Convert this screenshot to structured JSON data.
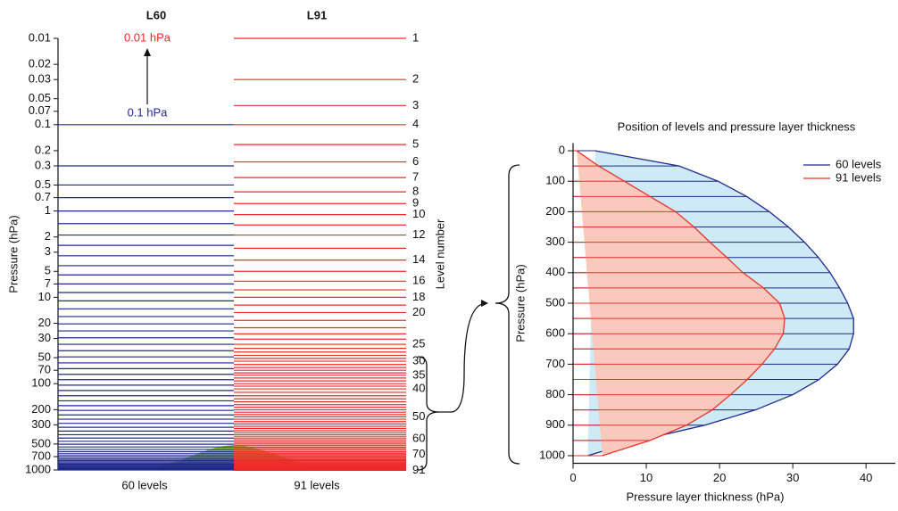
{
  "chart_data": [
    {
      "type": "levels",
      "ylabel": "Pressure (hPa)",
      "y2label": "Level number",
      "log_y": true,
      "ylim": [
        0.01,
        1000
      ],
      "yticks": [
        0.01,
        0.02,
        0.03,
        0.05,
        0.07,
        0.1,
        0.2,
        0.3,
        0.5,
        0.7,
        1,
        2,
        3,
        5,
        7,
        10,
        20,
        30,
        50,
        70,
        100,
        200,
        300,
        500,
        700,
        1000
      ],
      "columns": [
        {
          "name": "L60",
          "caption": "60 levels",
          "color": "#1f2a8a",
          "levels": [
            0.1,
            0.3,
            0.5,
            0.7,
            1.0,
            1.4,
            1.9,
            2.5,
            3.3,
            4.3,
            5.5,
            7.0,
            8.8,
            11,
            13.6,
            16.7,
            20.3,
            24.5,
            29.4,
            35,
            41.5,
            49,
            57.5,
            67,
            78,
            90,
            104,
            120,
            138,
            158,
            180,
            204,
            230,
            258,
            288,
            320,
            354,
            390,
            427,
            465,
            503,
            541,
            578,
            614,
            649,
            683,
            716,
            747,
            777,
            805,
            833,
            859,
            883,
            905,
            925,
            943,
            960,
            975,
            988,
            1000
          ]
        },
        {
          "name": "L91",
          "caption": "91 levels",
          "color": "#ee2a2a",
          "levels": [
            0.01,
            0.03,
            0.06,
            0.1,
            0.17,
            0.27,
            0.41,
            0.6,
            0.82,
            1.1,
            1.45,
            1.9,
            2.7,
            3.7,
            5.0,
            6.5,
            8.2,
            10,
            12.3,
            15,
            18.5,
            22.5,
            26.5,
            30.5,
            35,
            39,
            43,
            47,
            51,
            55,
            60,
            65,
            70,
            75,
            80,
            86,
            93,
            100,
            107,
            115,
            126,
            138,
            150,
            162,
            175,
            188,
            201,
            214,
            228,
            242,
            258,
            275,
            293,
            312,
            331,
            351,
            371,
            392,
            413,
            434,
            456,
            478,
            500,
            522,
            545,
            568,
            592,
            616,
            640,
            664,
            688,
            712,
            735,
            758,
            780,
            801,
            822,
            842,
            861,
            879,
            896,
            912,
            927,
            941,
            954,
            966,
            977,
            987,
            996,
            1004,
            1010
          ]
        }
      ],
      "level_ticks": [
        1,
        2,
        3,
        4,
        5,
        6,
        7,
        8,
        9,
        10,
        12,
        14,
        16,
        18,
        20,
        25,
        30,
        35,
        40,
        50,
        60,
        70,
        91
      ],
      "annotations": [
        "0.01 hPa",
        "0.1 hPa"
      ]
    },
    {
      "type": "thickness",
      "title": "Position of levels and pressure layer thickness",
      "xlabel": "Pressure layer thickness (hPa)",
      "ylabel": "Pressure (hPa)",
      "xlim": [
        0,
        44
      ],
      "xticks": [
        0,
        10,
        20,
        30,
        40
      ],
      "ylim": [
        -25,
        1025
      ],
      "yticks": [
        0,
        100,
        200,
        300,
        400,
        500,
        600,
        700,
        800,
        900,
        1000
      ],
      "y": [
        0,
        50,
        100,
        150,
        200,
        250,
        300,
        350,
        400,
        450,
        500,
        550,
        600,
        650,
        700,
        750,
        800,
        850,
        900,
        950,
        1000
      ],
      "series": [
        {
          "name": "60 levels",
          "color": "#1f2a8a",
          "fill": "#cdeaf6",
          "values": [
            3,
            14.5,
            19.8,
            23.7,
            26.8,
            29.4,
            31.6,
            33.5,
            35.1,
            36.4,
            37.5,
            38.3,
            38.3,
            37.7,
            36.1,
            33.6,
            30.0,
            24.9,
            18.0,
            9.0,
            2
          ]
        },
        {
          "name": "91 levels",
          "color": "#e8332a",
          "fill": "#f9c9be",
          "values": [
            0.5,
            3.5,
            7,
            10.5,
            14,
            16.5,
            18.7,
            21,
            23.2,
            26,
            28.2,
            28.9,
            28.7,
            27.5,
            25.8,
            23.8,
            21.5,
            19,
            15.5,
            10.5,
            4
          ]
        }
      ]
    }
  ]
}
